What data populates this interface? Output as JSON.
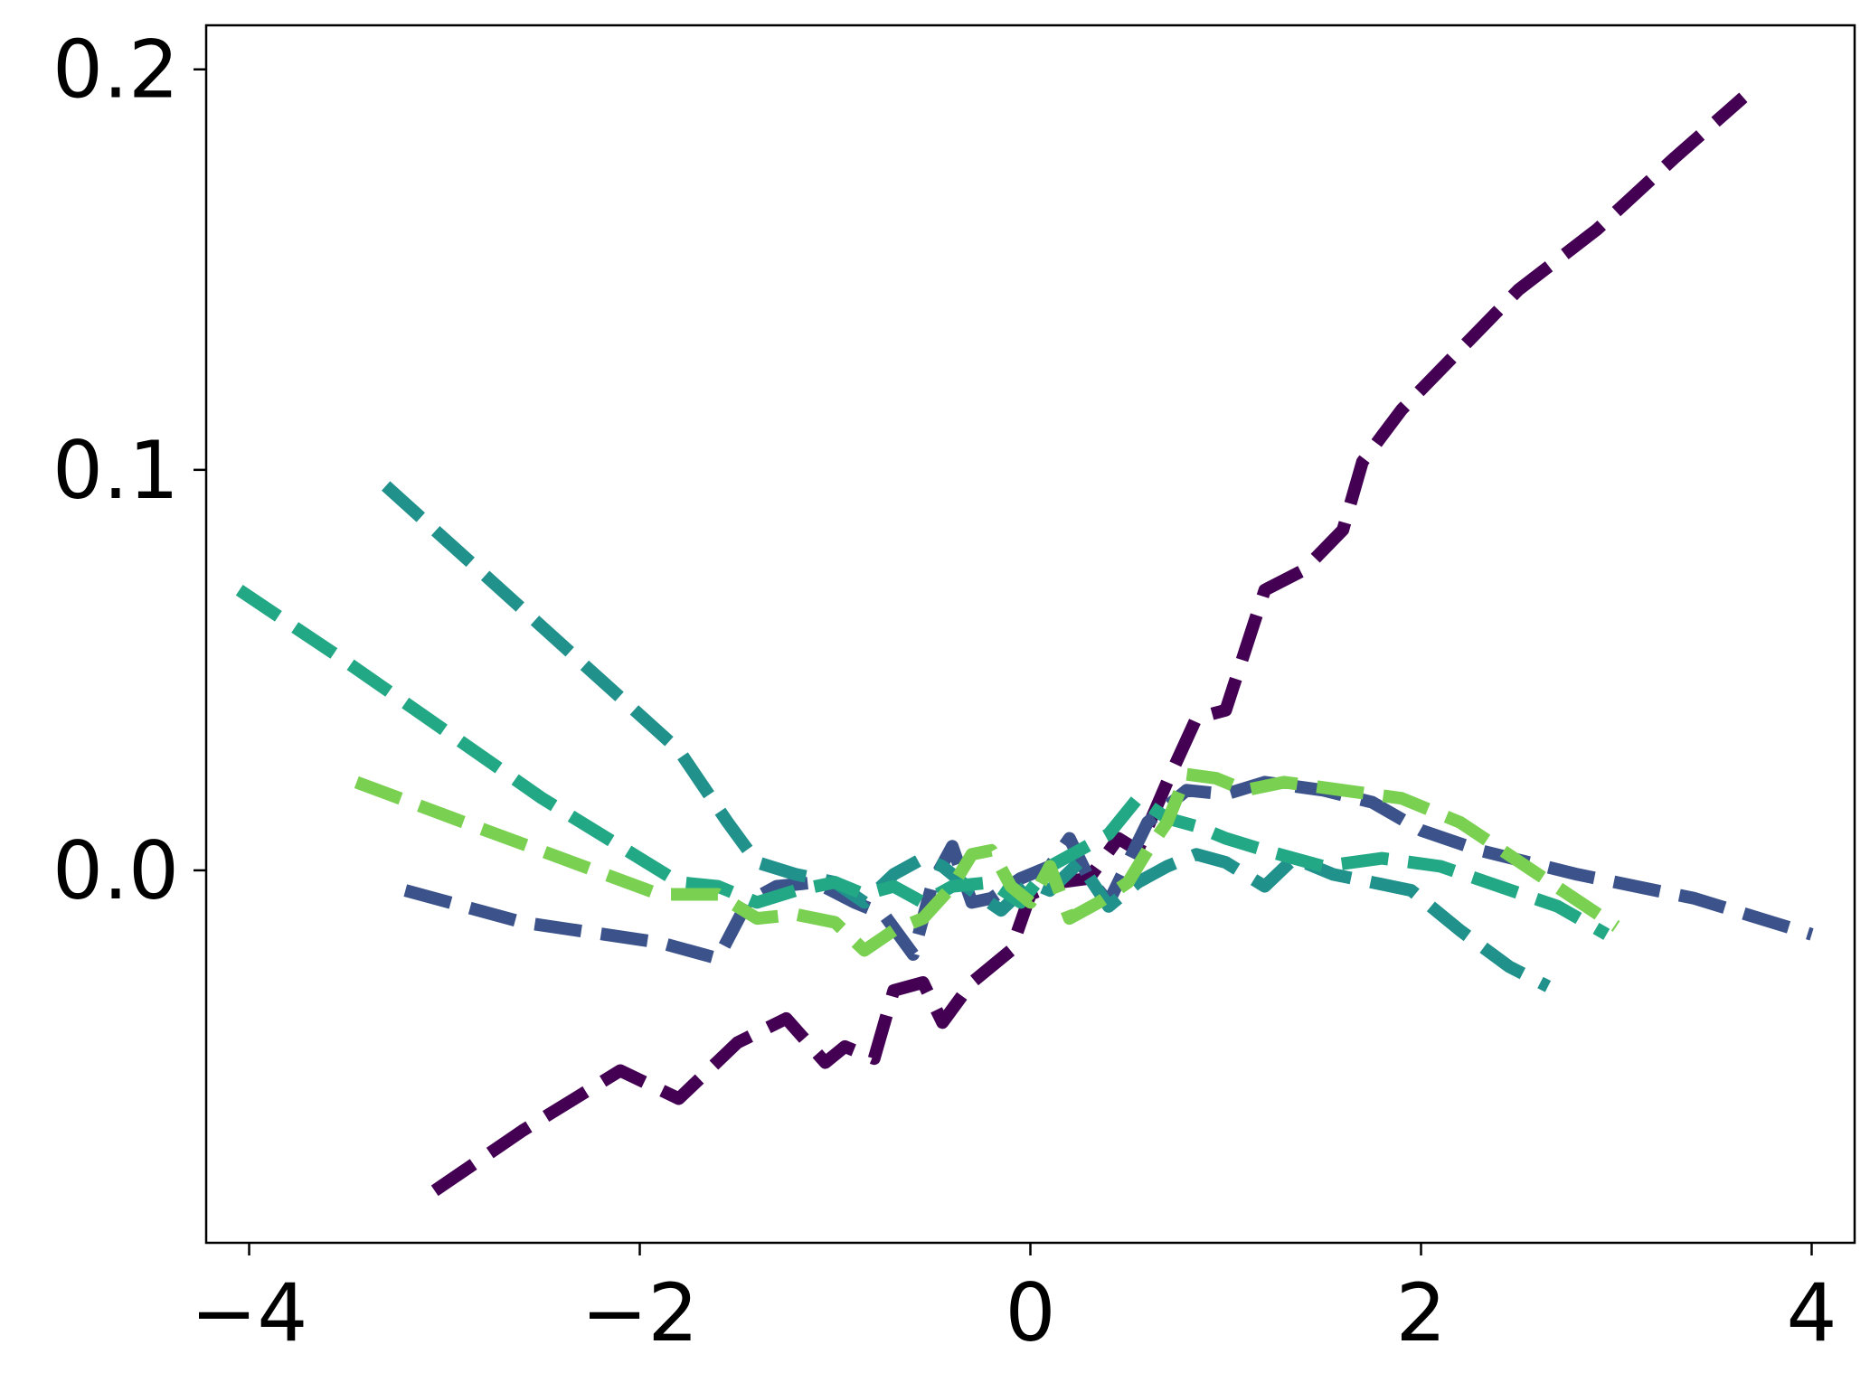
{
  "chart_data": {
    "type": "line",
    "title": "",
    "xlabel": "",
    "ylabel": "",
    "xlim": [
      -4.22,
      4.22
    ],
    "ylim": [
      -0.093,
      0.211
    ],
    "x_ticks": [
      -4,
      -2,
      0,
      2,
      4
    ],
    "x_tick_labels": [
      "−4",
      "−2",
      "0",
      "2",
      "4"
    ],
    "y_ticks": [
      0.0,
      0.1,
      0.2
    ],
    "y_tick_labels": [
      "0.0",
      "0.1",
      "0.2"
    ],
    "grid": false,
    "line_style": "dashed",
    "series": [
      {
        "color": "#440154",
        "points": [
          [
            -3.05,
            -0.08
          ],
          [
            -2.6,
            -0.065
          ],
          [
            -2.1,
            -0.05
          ],
          [
            -1.8,
            -0.057
          ],
          [
            -1.5,
            -0.043
          ],
          [
            -1.25,
            -0.037
          ],
          [
            -1.05,
            -0.048
          ],
          [
            -0.95,
            -0.044
          ],
          [
            -0.8,
            -0.047
          ],
          [
            -0.7,
            -0.03
          ],
          [
            -0.55,
            -0.028
          ],
          [
            -0.45,
            -0.038
          ],
          [
            -0.3,
            -0.028
          ],
          [
            -0.1,
            -0.02
          ],
          [
            0.0,
            -0.006
          ],
          [
            0.15,
            -0.003
          ],
          [
            0.3,
            -0.002
          ],
          [
            0.45,
            0.008
          ],
          [
            0.55,
            0.005
          ],
          [
            0.7,
            0.022
          ],
          [
            0.85,
            0.038
          ],
          [
            1.0,
            0.04
          ],
          [
            1.1,
            0.055
          ],
          [
            1.2,
            0.07
          ],
          [
            1.4,
            0.075
          ],
          [
            1.6,
            0.085
          ],
          [
            1.7,
            0.102
          ],
          [
            1.9,
            0.115
          ],
          [
            2.2,
            0.13
          ],
          [
            2.5,
            0.145
          ],
          [
            2.9,
            0.16
          ],
          [
            3.3,
            0.178
          ],
          [
            3.65,
            0.193
          ]
        ]
      },
      {
        "color": "#3b528b",
        "points": [
          [
            -3.2,
            -0.005
          ],
          [
            -2.6,
            -0.013
          ],
          [
            -1.9,
            -0.018
          ],
          [
            -1.6,
            -0.022
          ],
          [
            -1.45,
            -0.008
          ],
          [
            -1.3,
            -0.004
          ],
          [
            -1.1,
            -0.003
          ],
          [
            -0.9,
            -0.008
          ],
          [
            -0.75,
            -0.011
          ],
          [
            -0.6,
            -0.021
          ],
          [
            -0.5,
            -0.003
          ],
          [
            -0.4,
            0.006
          ],
          [
            -0.3,
            -0.008
          ],
          [
            -0.2,
            -0.007
          ],
          [
            -0.05,
            -0.002
          ],
          [
            0.1,
            0.001
          ],
          [
            0.2,
            0.008
          ],
          [
            0.3,
            -0.002
          ],
          [
            0.4,
            -0.008
          ],
          [
            0.5,
            0.002
          ],
          [
            0.6,
            0.012
          ],
          [
            0.8,
            0.02
          ],
          [
            1.0,
            0.019
          ],
          [
            1.2,
            0.022
          ],
          [
            1.5,
            0.02
          ],
          [
            1.75,
            0.017
          ],
          [
            2.0,
            0.01
          ],
          [
            2.3,
            0.005
          ],
          [
            2.8,
            -0.001
          ],
          [
            3.4,
            -0.007
          ],
          [
            4.0,
            -0.016
          ]
        ]
      },
      {
        "color": "#21918c",
        "points": [
          [
            -3.3,
            0.096
          ],
          [
            -2.8,
            0.074
          ],
          [
            -2.3,
            0.052
          ],
          [
            -1.8,
            0.03
          ],
          [
            -1.55,
            0.012
          ],
          [
            -1.4,
            0.002
          ],
          [
            -1.2,
            -0.001
          ],
          [
            -1.0,
            -0.003
          ],
          [
            -0.85,
            -0.008
          ],
          [
            -0.7,
            -0.001
          ],
          [
            -0.55,
            0.003
          ],
          [
            -0.45,
            0.001
          ],
          [
            -0.3,
            -0.005
          ],
          [
            -0.15,
            -0.01
          ],
          [
            0.0,
            -0.003
          ],
          [
            0.1,
            -0.005
          ],
          [
            0.25,
            0.002
          ],
          [
            0.4,
            -0.009
          ],
          [
            0.55,
            -0.003
          ],
          [
            0.7,
            0.001
          ],
          [
            0.85,
            0.004
          ],
          [
            1.0,
            0.002
          ],
          [
            1.2,
            -0.004
          ],
          [
            1.35,
            0.003
          ],
          [
            1.55,
            -0.001
          ],
          [
            1.75,
            -0.003
          ],
          [
            1.95,
            -0.005
          ],
          [
            2.2,
            -0.015
          ],
          [
            2.45,
            -0.024
          ],
          [
            2.65,
            -0.029
          ]
        ]
      },
      {
        "color": "#22a884",
        "points": [
          [
            -4.05,
            0.07
          ],
          [
            -3.5,
            0.052
          ],
          [
            -3.0,
            0.035
          ],
          [
            -2.5,
            0.018
          ],
          [
            -2.0,
            0.003
          ],
          [
            -1.8,
            -0.003
          ],
          [
            -1.6,
            -0.004
          ],
          [
            -1.4,
            -0.008
          ],
          [
            -1.2,
            -0.005
          ],
          [
            -1.0,
            -0.003
          ],
          [
            -0.85,
            -0.006
          ],
          [
            -0.7,
            -0.004
          ],
          [
            -0.55,
            -0.008
          ],
          [
            -0.4,
            -0.004
          ],
          [
            -0.2,
            -0.003
          ],
          [
            -0.05,
            -0.008
          ],
          [
            0.1,
            0.001
          ],
          [
            0.25,
            0.005
          ],
          [
            0.4,
            0.009
          ],
          [
            0.55,
            0.018
          ],
          [
            0.7,
            0.013
          ],
          [
            0.85,
            0.011
          ],
          [
            1.0,
            0.008
          ],
          [
            1.2,
            0.005
          ],
          [
            1.5,
            0.001
          ],
          [
            1.8,
            0.003
          ],
          [
            2.1,
            0.001
          ],
          [
            2.4,
            -0.004
          ],
          [
            2.7,
            -0.009
          ],
          [
            2.95,
            -0.016
          ]
        ]
      },
      {
        "color": "#7ad151",
        "points": [
          [
            -3.45,
            0.022
          ],
          [
            -2.9,
            0.012
          ],
          [
            -2.4,
            0.003
          ],
          [
            -1.9,
            -0.006
          ],
          [
            -1.6,
            -0.006
          ],
          [
            -1.4,
            -0.012
          ],
          [
            -1.2,
            -0.011
          ],
          [
            -1.0,
            -0.013
          ],
          [
            -0.85,
            -0.02
          ],
          [
            -0.7,
            -0.015
          ],
          [
            -0.55,
            -0.012
          ],
          [
            -0.4,
            -0.004
          ],
          [
            -0.3,
            0.004
          ],
          [
            -0.2,
            0.005
          ],
          [
            -0.1,
            -0.004
          ],
          [
            0.0,
            -0.008
          ],
          [
            0.1,
            0.001
          ],
          [
            0.2,
            -0.012
          ],
          [
            0.35,
            -0.008
          ],
          [
            0.5,
            -0.003
          ],
          [
            0.6,
            0.005
          ],
          [
            0.7,
            0.012
          ],
          [
            0.8,
            0.024
          ],
          [
            0.95,
            0.023
          ],
          [
            1.1,
            0.02
          ],
          [
            1.3,
            0.022
          ],
          [
            1.6,
            0.02
          ],
          [
            1.9,
            0.018
          ],
          [
            2.2,
            0.012
          ],
          [
            2.6,
            -0.001
          ],
          [
            3.0,
            -0.014
          ]
        ]
      }
    ]
  }
}
